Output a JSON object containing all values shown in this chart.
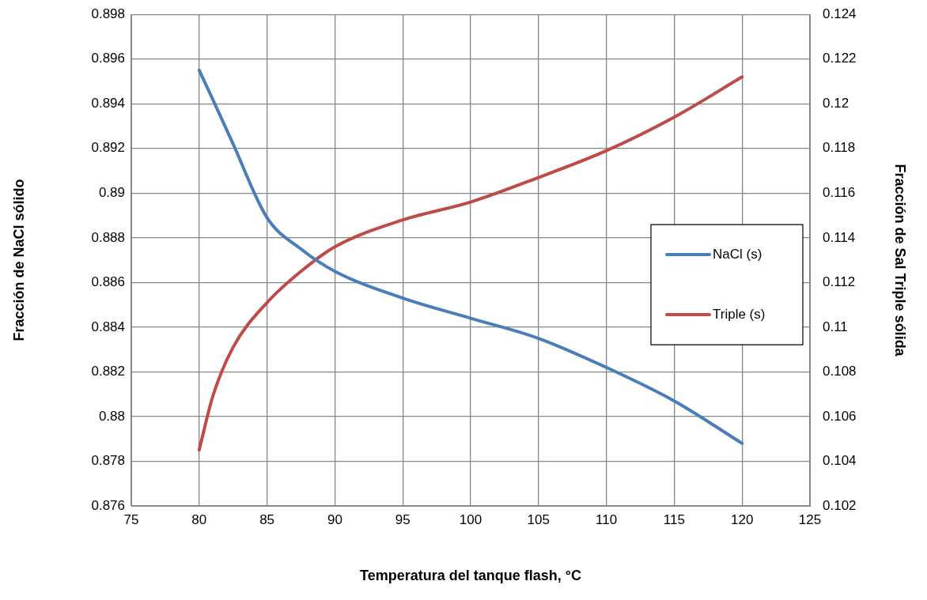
{
  "chart_data": {
    "type": "line",
    "xlabel": "Temperatura del tanque flash, °C",
    "ylabel": "Fracción de NaCl sólido",
    "y2label": "Fracción de Sal Triple sólida",
    "xlim": [
      75,
      125
    ],
    "xticks": [
      75,
      80,
      85,
      90,
      95,
      100,
      105,
      110,
      115,
      120,
      125
    ],
    "ylim": [
      0.876,
      0.898
    ],
    "yticks": [
      0.876,
      0.878,
      0.88,
      0.882,
      0.884,
      0.886,
      0.888,
      0.89,
      0.892,
      0.894,
      0.896,
      0.898
    ],
    "y2lim": [
      0.102,
      0.124
    ],
    "y2ticks": [
      0.102,
      0.104,
      0.106,
      0.108,
      0.11,
      0.112,
      0.114,
      0.116,
      0.118,
      0.12,
      0.122,
      0.124
    ],
    "x": [
      80,
      81,
      82.5,
      85,
      87.5,
      90,
      95,
      100,
      105,
      110,
      115,
      120
    ],
    "series": [
      {
        "name": "NaCl (s)",
        "color": "#4a7ebb",
        "values": [
          0.8955,
          0.8942,
          0.8922,
          0.8889,
          0.8875,
          0.8865,
          0.8853,
          0.8844,
          0.8835,
          0.8822,
          0.8807,
          0.8788
        ]
      },
      {
        "name": "Triple (s)",
        "color": "#be4b48",
        "axis": "y2",
        "values": [
          0.1045,
          0.1069,
          0.1091,
          0.1111,
          0.1125,
          0.1136,
          0.1148,
          0.1156,
          0.1167,
          0.1179,
          0.1194,
          0.1212
        ]
      }
    ],
    "grid": true,
    "legend": "right",
    "marker": "none",
    "line_style": "solid"
  }
}
